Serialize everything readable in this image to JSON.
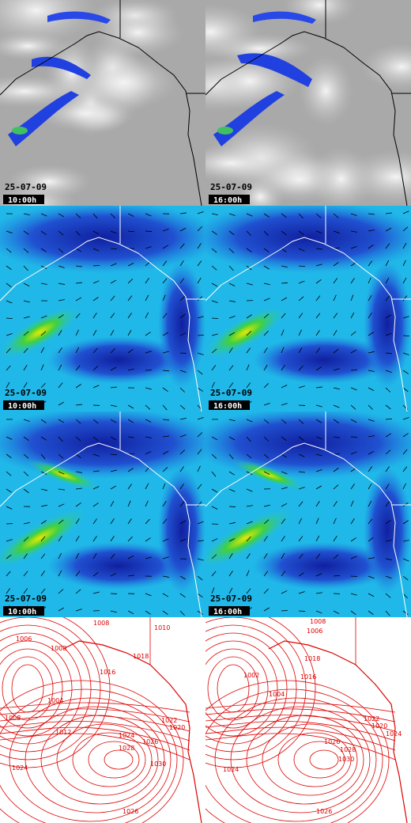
{
  "panels": [
    {
      "date": "25-07-09",
      "time": "10:00h"
    },
    {
      "date": "25-07-09",
      "time": "16:00h"
    },
    {
      "date": "25-07-09",
      "time": "10:00h"
    },
    {
      "date": "25-07-09",
      "time": "16:00h"
    },
    {
      "date": "25-07-09",
      "time": "10:00h"
    },
    {
      "date": "25-07-09",
      "time": "16:00h"
    }
  ],
  "isobar_maps": [
    {
      "labels": [
        "1008",
        "1010",
        "1006",
        "1008",
        "1016",
        "1018",
        "1004",
        "1008",
        "1012",
        "1022",
        "1020",
        "1024",
        "1026",
        "1028",
        "1030",
        "1024",
        "1026"
      ]
    },
    {
      "labels": [
        "1008",
        "1006",
        "1002",
        "1004",
        "1018",
        "1016",
        "1022",
        "1020",
        "1024",
        "1026",
        "1028",
        "1030",
        "1024",
        "1026"
      ]
    }
  ]
}
